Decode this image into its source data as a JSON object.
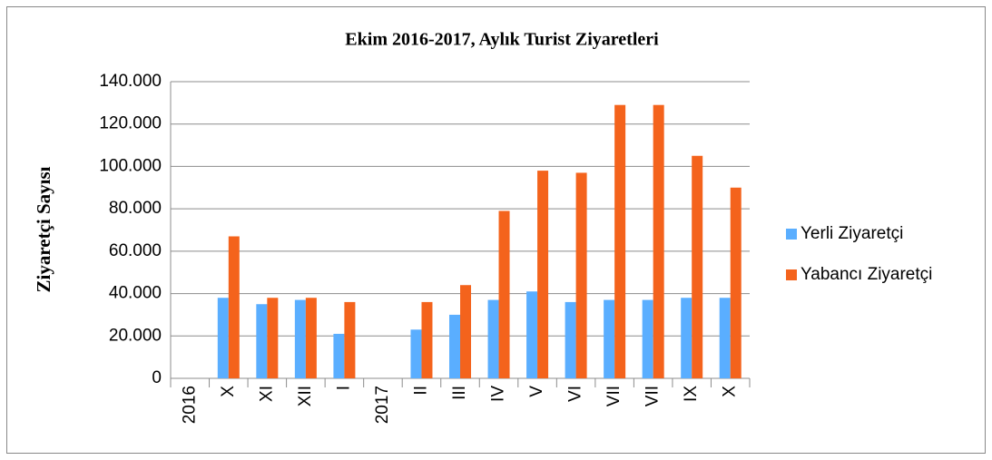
{
  "chart_data": {
    "type": "bar",
    "title": "Ekim 2016-2017, Aylık Turist Ziyaretleri",
    "y_label": "Ziyaretçi Sayısı",
    "categories": [
      "2016",
      "X",
      "XI",
      "XII",
      "I",
      "2017",
      "II",
      "III",
      "IV",
      "V",
      "VI",
      "VII",
      "VII",
      "IX",
      "X"
    ],
    "series": [
      {
        "name": "Yerli Ziyaretçi",
        "color": "#5aaeff",
        "values": [
          null,
          38000,
          35000,
          37000,
          21000,
          null,
          23000,
          30000,
          37000,
          41000,
          36000,
          37000,
          37000,
          38000,
          38000
        ]
      },
      {
        "name": "Yabancı Ziyaretçi",
        "color": "#f4631c",
        "values": [
          null,
          67000,
          38000,
          38000,
          36000,
          null,
          36000,
          44000,
          79000,
          98000,
          97000,
          129000,
          129000,
          105000,
          90000
        ]
      }
    ],
    "ylim": [
      0,
      140000
    ],
    "yticks": [
      0,
      {
        "value": 20000,
        "label": "20.000"
      },
      {
        "value": 40000,
        "label": "40.000"
      },
      {
        "value": 60000,
        "label": "60.000"
      },
      {
        "value": 80000,
        "label": "80.000"
      },
      {
        "value": 100000,
        "label": "100.000"
      },
      {
        "value": 120000,
        "label": "120.000"
      },
      {
        "value": 140000,
        "label": "140.000"
      }
    ],
    "grid": true,
    "legend": "right"
  }
}
